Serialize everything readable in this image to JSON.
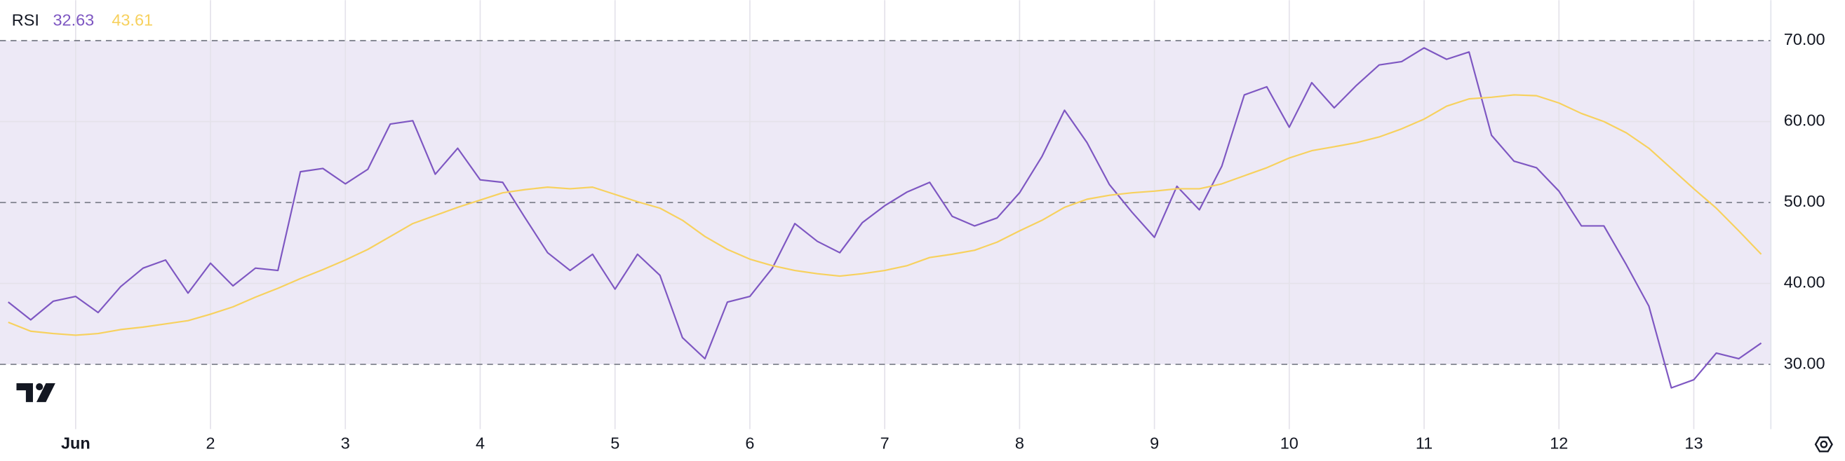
{
  "chart_data": {
    "type": "line",
    "title": "RSI",
    "categories": [
      null,
      null,
      null,
      "Jun",
      null,
      null,
      null,
      null,
      null,
      "2",
      null,
      null,
      null,
      null,
      null,
      "3",
      null,
      null,
      null,
      null,
      null,
      "4",
      null,
      null,
      null,
      null,
      null,
      "5",
      null,
      null,
      null,
      null,
      null,
      "6",
      null,
      null,
      null,
      null,
      null,
      "7",
      null,
      null,
      null,
      null,
      null,
      "8",
      null,
      null,
      null,
      null,
      null,
      "9",
      null,
      null,
      null,
      null,
      null,
      "10",
      null,
      null,
      null,
      null,
      null,
      "11",
      null,
      null,
      null,
      null,
      null,
      "12",
      null,
      null,
      null,
      null,
      null,
      "13",
      null,
      null,
      null
    ],
    "series": [
      {
        "name": "RSI",
        "color": "#7e57c2",
        "values": [
          37.7,
          35.5,
          37.8,
          38.4,
          36.4,
          39.6,
          41.9,
          42.9,
          38.8,
          42.5,
          39.7,
          41.9,
          41.6,
          53.8,
          54.2,
          52.3,
          54.1,
          59.7,
          60.1,
          53.5,
          56.7,
          52.8,
          52.5,
          48.1,
          43.8,
          41.6,
          43.6,
          39.3,
          43.6,
          41.0,
          33.3,
          30.7,
          37.7,
          38.4,
          41.9,
          47.4,
          45.2,
          43.8,
          47.5,
          49.6,
          51.3,
          52.5,
          48.3,
          47.1,
          48.1,
          51.2,
          55.7,
          61.4,
          57.4,
          52.2,
          48.8,
          45.7,
          52.0,
          49.1,
          54.5,
          63.3,
          64.3,
          59.3,
          64.8,
          61.7,
          64.5,
          67.0,
          67.4,
          69.1,
          67.7,
          68.6,
          58.3,
          55.1,
          54.3,
          51.4,
          47.1,
          47.1,
          42.3,
          37.2,
          27.1,
          28.1,
          31.4,
          30.7,
          32.63
        ]
      },
      {
        "color": "#f7d15e",
        "values": [
          35.2,
          34.1,
          33.8,
          33.6,
          33.8,
          34.3,
          34.6,
          35.0,
          35.4,
          36.2,
          37.1,
          38.3,
          39.4,
          40.6,
          41.7,
          42.9,
          44.2,
          45.8,
          47.4,
          48.4,
          49.4,
          50.3,
          51.2,
          51.6,
          51.9,
          51.7,
          51.9,
          51.0,
          50.1,
          49.3,
          47.8,
          45.8,
          44.2,
          43.0,
          42.2,
          41.6,
          41.2,
          40.9,
          41.2,
          41.6,
          42.2,
          43.2,
          43.6,
          44.1,
          45.1,
          46.5,
          47.8,
          49.4,
          50.4,
          50.9,
          51.2,
          51.4,
          51.7,
          51.7,
          52.3,
          53.3,
          54.3,
          55.5,
          56.4,
          56.9,
          57.4,
          58.1,
          59.1,
          60.3,
          61.9,
          62.8,
          63.0,
          63.3,
          63.2,
          62.3,
          61.0,
          60.0,
          58.6,
          56.7,
          54.2,
          51.7,
          49.3,
          46.5,
          43.61
        ]
      }
    ],
    "ylim": [
      22,
      75
    ],
    "yticks": [
      {
        "value": 30,
        "label": "30.00"
      },
      {
        "value": 40,
        "label": "40.00"
      },
      {
        "value": 50,
        "label": "50.00"
      },
      {
        "value": 60,
        "label": "60.00"
      },
      {
        "value": 70,
        "label": "70.00"
      }
    ],
    "bands": {
      "upper": 70,
      "middle": 50,
      "lower": 30,
      "fill": "#ede9f6"
    },
    "grid": true
  }
}
